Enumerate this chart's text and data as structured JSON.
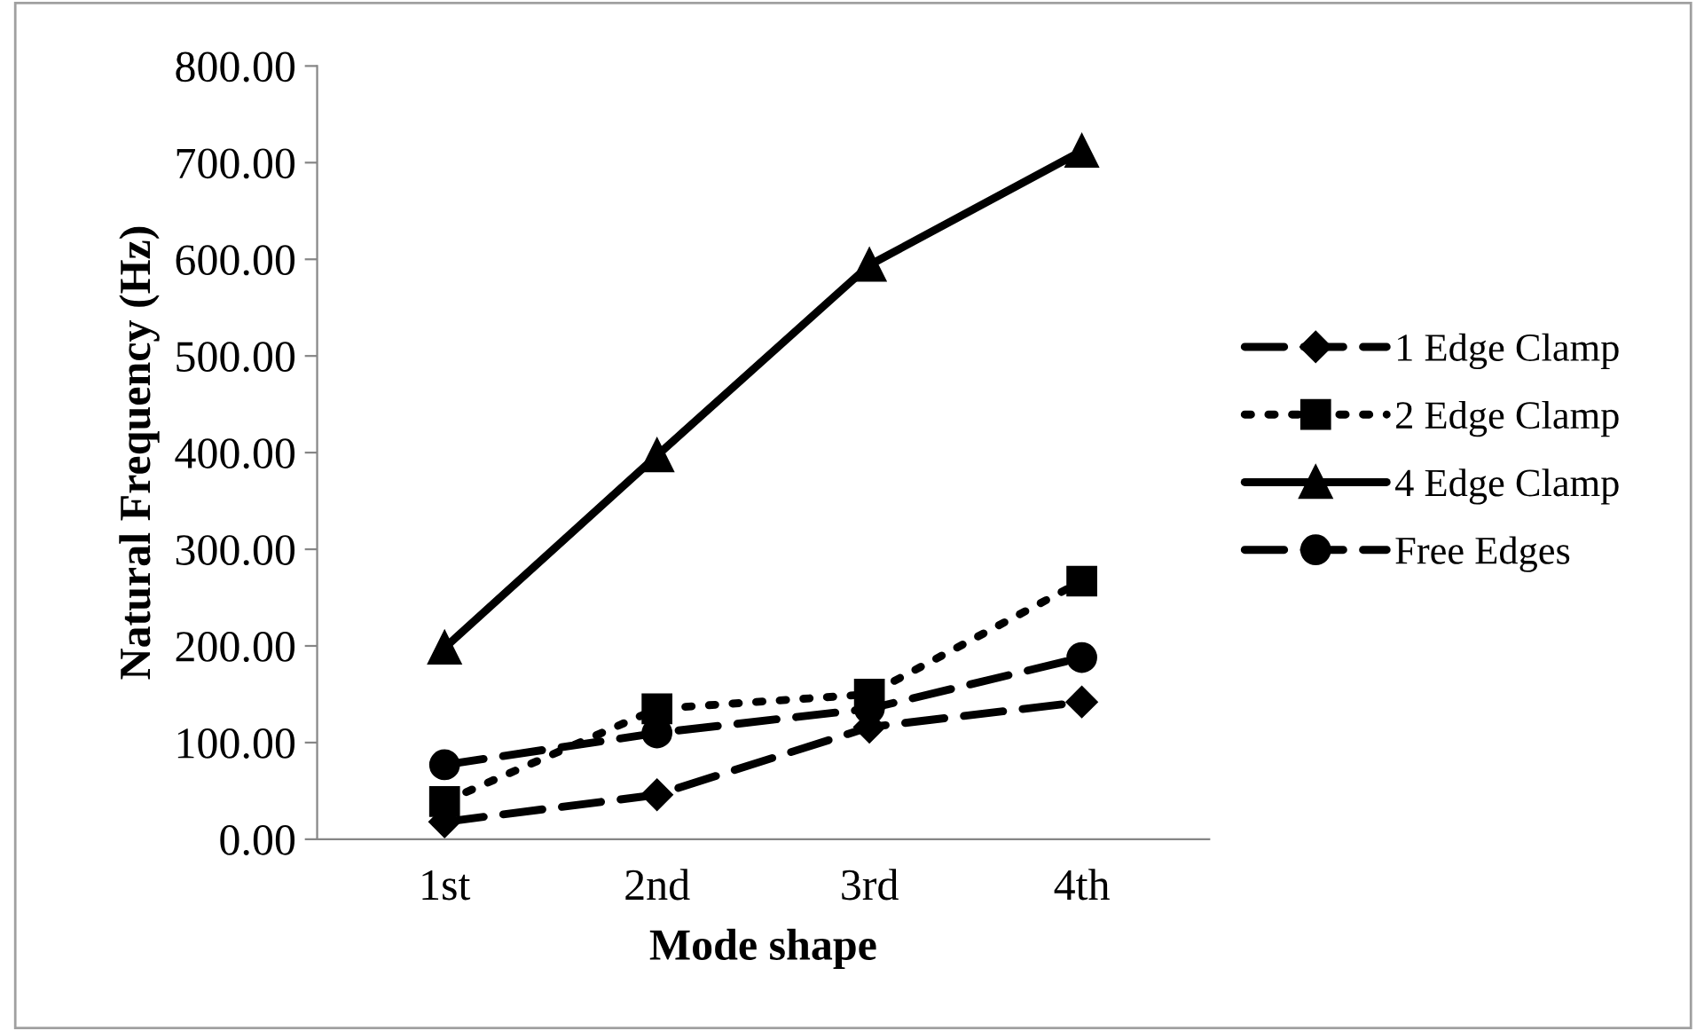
{
  "chart_data": {
    "type": "line",
    "xlabel": "Mode shape",
    "ylabel": "Natural Frequency (Hz)",
    "categories": [
      "1st",
      "2nd",
      "3rd",
      "4th"
    ],
    "series": [
      {
        "name": "1 Edge Clamp",
        "color": "#000000",
        "marker": "diamond",
        "line_style": "dashed",
        "values": [
          18,
          46,
          116,
          142
        ]
      },
      {
        "name": "2 Edge Clamp",
        "color": "#000000",
        "marker": "square",
        "line_style": "dotted",
        "values": [
          39,
          135,
          150,
          267
        ]
      },
      {
        "name": "4 Edge Clamp",
        "color": "#000000",
        "marker": "triangle",
        "line_style": "solid",
        "values": [
          198,
          397,
          594,
          712
        ]
      },
      {
        "name": "Free Edges",
        "color": "#000000",
        "marker": "circle",
        "line_style": "dashed",
        "values": [
          77,
          110,
          135,
          188
        ]
      }
    ],
    "ylim": [
      0,
      800
    ],
    "yticks": [
      {
        "value": 0,
        "label": "0.00"
      },
      {
        "value": 100,
        "label": "100.00"
      },
      {
        "value": 200,
        "label": "200.00"
      },
      {
        "value": 300,
        "label": "300.00"
      },
      {
        "value": 400,
        "label": "400.00"
      },
      {
        "value": 500,
        "label": "500.00"
      },
      {
        "value": 600,
        "label": "600.00"
      },
      {
        "value": 700,
        "label": "700.00"
      },
      {
        "value": 800,
        "label": "800.00"
      }
    ],
    "grid": false,
    "legend": "right"
  }
}
